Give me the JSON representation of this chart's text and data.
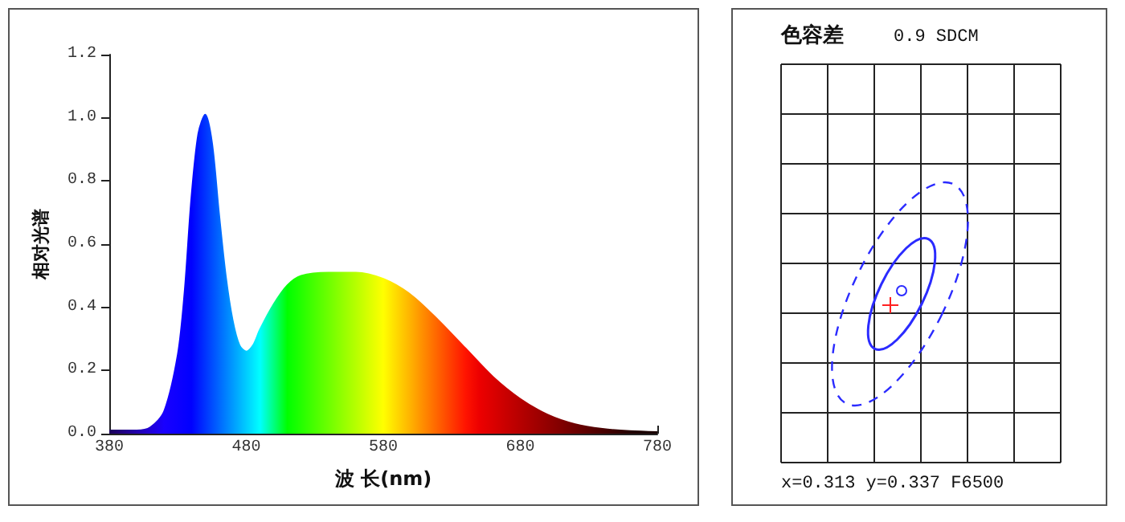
{
  "chart_data": [
    {
      "type": "area",
      "xlabel": "波 长(nm)",
      "ylabel": "相对光谱",
      "x": [
        380,
        400,
        410,
        420,
        430,
        435,
        440,
        445,
        450,
        455,
        460,
        465,
        470,
        475,
        480,
        485,
        490,
        500,
        510,
        520,
        540,
        560,
        580,
        600,
        620,
        640,
        660,
        680,
        700,
        720,
        740,
        760,
        780
      ],
      "values": [
        0.01,
        0.01,
        0.02,
        0.07,
        0.25,
        0.45,
        0.75,
        0.95,
        1.01,
        0.92,
        0.7,
        0.5,
        0.36,
        0.28,
        0.26,
        0.28,
        0.33,
        0.41,
        0.47,
        0.5,
        0.51,
        0.51,
        0.49,
        0.44,
        0.36,
        0.27,
        0.18,
        0.11,
        0.06,
        0.03,
        0.015,
        0.008,
        0.005
      ],
      "xlim": [
        380,
        780
      ],
      "xticks": [
        380,
        480,
        580,
        680,
        780
      ],
      "ylim": [
        0,
        1.2
      ],
      "yticks": [
        {
          "value": 0,
          "label": "0.0"
        },
        {
          "value": 0.2,
          "label": "0.2"
        },
        {
          "value": 0.4,
          "label": "0.4"
        },
        {
          "value": 0.6,
          "label": "0.6"
        },
        {
          "value": 0.8,
          "label": "0.8"
        },
        {
          "value": 1,
          "label": "1.0"
        },
        {
          "value": 1.2,
          "label": "1.2"
        }
      ],
      "grid": false
    },
    {
      "type": "other",
      "title": "色容差",
      "subtitle": "0.9 SDCM",
      "annotations": [
        "x=0.313 y=0.337 F6500"
      ]
    }
  ]
}
